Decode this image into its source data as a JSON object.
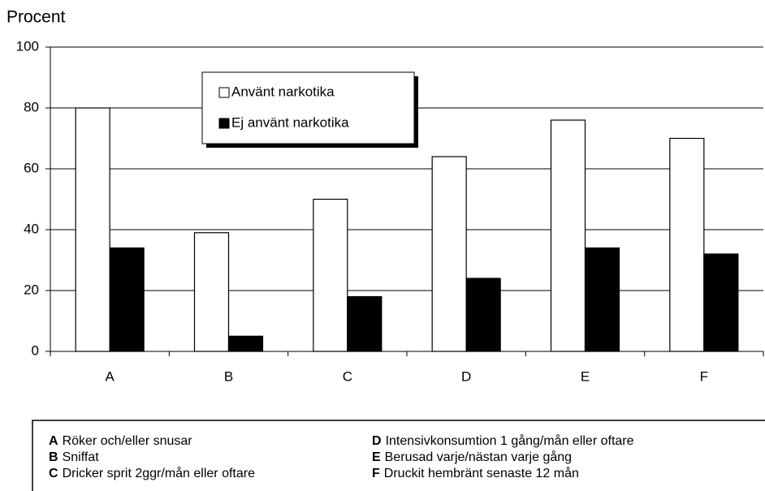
{
  "chart_data": {
    "type": "bar",
    "y_label": "Procent",
    "categories": [
      "A",
      "B",
      "C",
      "D",
      "E",
      "F"
    ],
    "series": [
      {
        "name": "Använt narkotika",
        "color": "#ffffff",
        "values": [
          80,
          39,
          50,
          64,
          76,
          70
        ]
      },
      {
        "name": "Ej använt narkotika",
        "color": "#000000",
        "values": [
          34,
          5,
          18,
          24,
          34,
          32
        ]
      }
    ],
    "ylim": [
      0,
      100
    ],
    "yticks": [
      0,
      20,
      40,
      60,
      80,
      100
    ],
    "grid": true,
    "key": [
      "Röker och/eller snusar",
      "Sniffat",
      "Dricker sprit 2ggr/mån eller oftare",
      "Intensivkonsumtion 1 gång/mån eller oftare",
      "Berusad varje/nästan varje gång",
      "Druckit hembränt senaste 12 mån"
    ]
  }
}
